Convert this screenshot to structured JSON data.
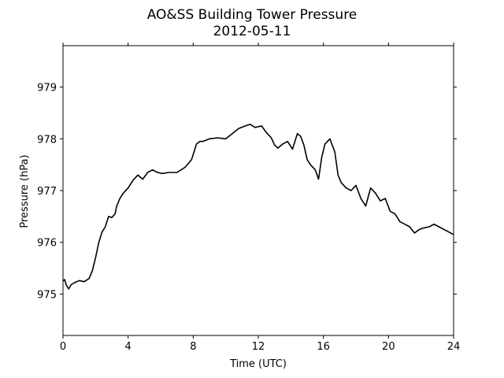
{
  "chart_data": {
    "type": "line",
    "title": "AO&SS Building Tower Pressure",
    "subtitle": "2012-05-11",
    "xlabel": "Time (UTC)",
    "ylabel": "Pressure (hPa)",
    "xlim": [
      0,
      24
    ],
    "ylim": [
      974.2,
      979.8
    ],
    "xticks": [
      0,
      4,
      8,
      12,
      16,
      20,
      24
    ],
    "yticks": [
      975,
      976,
      977,
      978,
      979
    ],
    "grid": false,
    "line_color": "#000000",
    "series": [
      {
        "x": [
          0,
          0.1,
          0.2,
          0.35,
          0.5,
          0.7,
          1.0,
          1.3,
          1.6,
          1.8,
          2.0,
          2.2,
          2.4,
          2.6,
          2.8,
          3.0,
          3.2,
          3.3,
          3.5,
          3.7,
          4.0,
          4.3,
          4.6,
          4.9,
          5.2,
          5.5,
          5.8,
          6.1,
          6.5,
          7.0,
          7.5,
          7.9,
          8.2,
          8.4,
          8.6,
          9.0,
          9.5,
          10.0,
          10.4,
          10.8,
          11.2,
          11.5,
          11.8,
          12.2,
          12.5,
          12.8,
          13.0,
          13.2,
          13.5,
          13.8,
          14.1,
          14.4,
          14.6,
          14.8,
          15.0,
          15.2,
          15.5,
          15.7,
          15.9,
          16.1,
          16.4,
          16.7,
          16.9,
          17.1,
          17.4,
          17.7,
          18.0,
          18.3,
          18.6,
          18.9,
          19.2,
          19.5,
          19.8,
          20.1,
          20.4,
          20.7,
          21.0,
          21.3,
          21.6,
          21.9,
          22.2,
          22.5,
          22.8,
          23.1,
          23.4,
          23.7,
          24.0
        ],
        "y": [
          975.25,
          975.28,
          975.18,
          975.1,
          975.18,
          975.22,
          975.26,
          975.24,
          975.3,
          975.45,
          975.7,
          976.0,
          976.2,
          976.3,
          976.5,
          976.48,
          976.55,
          976.7,
          976.85,
          976.95,
          977.05,
          977.2,
          977.3,
          977.22,
          977.35,
          977.4,
          977.35,
          977.33,
          977.35,
          977.35,
          977.45,
          977.6,
          977.9,
          977.95,
          977.95,
          978.0,
          978.02,
          978.0,
          978.1,
          978.2,
          978.25,
          978.28,
          978.22,
          978.25,
          978.12,
          978.02,
          977.88,
          977.82,
          977.9,
          977.95,
          977.8,
          978.1,
          978.05,
          977.88,
          977.6,
          977.5,
          977.4,
          977.22,
          977.65,
          977.9,
          978.0,
          977.75,
          977.3,
          977.15,
          977.05,
          977.0,
          977.1,
          976.85,
          976.7,
          977.05,
          976.95,
          976.8,
          976.85,
          976.6,
          976.55,
          976.4,
          976.35,
          976.3,
          976.18,
          976.25,
          976.28,
          976.3,
          976.35,
          976.3,
          976.25,
          976.2,
          976.15
        ]
      }
    ]
  }
}
